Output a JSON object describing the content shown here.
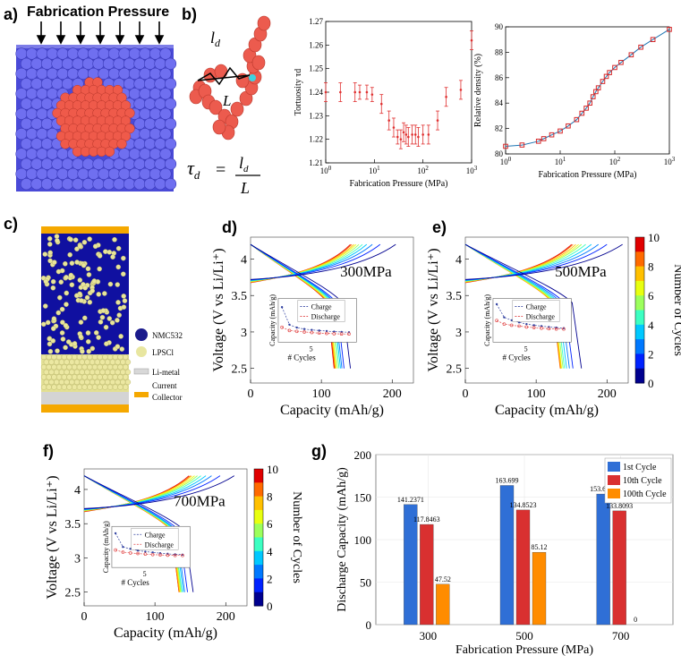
{
  "panels": {
    "a": "a)",
    "b": "b)",
    "c": "c)",
    "d": "d)",
    "e": "e)",
    "f": "f)",
    "g": "g)"
  },
  "panel_a": {
    "title": "Fabrication Pressure"
  },
  "panel_b_diagram": {
    "ld": "l",
    "ld_sub": "d",
    "L": "L",
    "tau": "τ",
    "tau_sub": "d",
    "eq": "="
  },
  "panel_c": {
    "legend": [
      {
        "label": "NMC532",
        "color": "#1a1a8c"
      },
      {
        "label": "LPSCl",
        "color": "#e8e6a0"
      },
      {
        "label": "Li-metal",
        "color": "#d8d8d8"
      },
      {
        "label": "Current Collector",
        "color": "#f5a800"
      }
    ]
  },
  "colorbar": {
    "label": "Number of Cycles",
    "ticks": [
      "0",
      "2",
      "4",
      "6",
      "8",
      "10"
    ]
  },
  "chart_data": [
    {
      "id": "b_tortuosity",
      "type": "scatter",
      "xlabel": "Fabrication Pressure (MPa)",
      "ylabel": "Tortuosity τd",
      "xscale": "log",
      "xlim": [
        1,
        1000
      ],
      "ylim": [
        1.21,
        1.27
      ],
      "xticks": [
        "10^0",
        "10^1",
        "10^2",
        "10^3"
      ],
      "yticks": [
        "1.21",
        "1.22",
        "1.23",
        "1.24",
        "1.25",
        "1.26",
        "1.27"
      ],
      "x": [
        1,
        2,
        4,
        5,
        7,
        9,
        14,
        20,
        25,
        30,
        35,
        40,
        45,
        50,
        60,
        70,
        80,
        100,
        130,
        200,
        300,
        600,
        1000
      ],
      "y": [
        1.24,
        1.24,
        1.24,
        1.24,
        1.24,
        1.239,
        1.235,
        1.228,
        1.225,
        1.221,
        1.22,
        1.223,
        1.222,
        1.221,
        1.222,
        1.222,
        1.221,
        1.222,
        1.222,
        1.228,
        1.238,
        1.241,
        1.262
      ],
      "err": [
        0.004,
        0.004,
        0.004,
        0.003,
        0.003,
        0.003,
        0.004,
        0.004,
        0.004,
        0.003,
        0.004,
        0.004,
        0.004,
        0.004,
        0.004,
        0.004,
        0.004,
        0.004,
        0.004,
        0.004,
        0.004,
        0.004,
        0.004
      ],
      "color": "#e03030"
    },
    {
      "id": "b_density",
      "type": "line",
      "xlabel": "Fabrication Pressure (MPa)",
      "ylabel": "Relative density (%)",
      "xscale": "log",
      "xlim": [
        1,
        1000
      ],
      "ylim": [
        80,
        90
      ],
      "xticks": [
        "10^0",
        "10^1",
        "10^2",
        "10^3"
      ],
      "yticks": [
        "80",
        "82",
        "84",
        "86",
        "88",
        "90"
      ],
      "x": [
        1,
        2,
        4,
        5,
        7,
        10,
        14,
        20,
        25,
        30,
        35,
        40,
        45,
        50,
        60,
        70,
        80,
        100,
        130,
        200,
        300,
        500,
        1000
      ],
      "y": [
        80.6,
        80.7,
        81.0,
        81.2,
        81.5,
        81.8,
        82.2,
        82.7,
        83.2,
        83.6,
        84.0,
        84.5,
        84.9,
        85.2,
        85.7,
        86.1,
        86.4,
        86.8,
        87.2,
        87.8,
        88.4,
        89.0,
        89.8
      ],
      "line_color": "#1f77b4",
      "marker_color": "#d62728"
    },
    {
      "id": "d",
      "type": "line",
      "label": "300MPa",
      "xlabel": "Capacity (mAh/g)",
      "ylabel": "Voltage (V vs Li/Li⁺)",
      "xlim": [
        0,
        230
      ],
      "ylim": [
        2.3,
        4.3
      ],
      "xticks": [
        "0",
        "100",
        "200"
      ],
      "yticks": [
        "2.5",
        "3",
        "3.5",
        "4"
      ],
      "inset": {
        "xlabel": "# Cycles",
        "ylabel": "Capacity (mAh/g)",
        "legend": [
          "Charge",
          "Discharge"
        ],
        "xticks": [
          "5"
        ],
        "charge": [
          210,
          150,
          140,
          135,
          132,
          130,
          128,
          126,
          125,
          124
        ],
        "discharge": [
          141,
          130,
          127,
          125,
          123,
          121,
          120,
          119,
          118,
          118
        ]
      },
      "charge_end": [
        205,
        183,
        172,
        164,
        158,
        153,
        149,
        146,
        143,
        141
      ],
      "discharge_end": [
        141,
        132,
        129,
        127,
        125,
        123,
        121,
        120,
        119,
        118
      ]
    },
    {
      "id": "e",
      "type": "line",
      "label": "500MPa",
      "xlabel": "Capacity (mAh/g)",
      "ylabel": "Voltage (V vs Li/Li⁺)",
      "xlim": [
        0,
        230
      ],
      "ylim": [
        2.3,
        4.3
      ],
      "xticks": [
        "0",
        "100",
        "200"
      ],
      "yticks": [
        "2.5",
        "3",
        "3.5",
        "4"
      ],
      "inset": {
        "xlabel": "# Cycles",
        "ylabel": "Capacity (mAh/g)",
        "legend": [
          "Charge",
          "Discharge"
        ],
        "xticks": [
          "5"
        ],
        "charge": [
          220,
          175,
          165,
          158,
          152,
          148,
          145,
          142,
          140,
          138
        ],
        "discharge": [
          164,
          152,
          148,
          145,
          142,
          140,
          138,
          136,
          135,
          135
        ]
      },
      "charge_end": [
        222,
        200,
        188,
        178,
        170,
        164,
        160,
        156,
        152,
        150
      ],
      "discharge_end": [
        164,
        152,
        147,
        143,
        140,
        138,
        136,
        135,
        134,
        135
      ]
    },
    {
      "id": "f",
      "type": "line",
      "label": "700MPa",
      "xlabel": "Capacity (mAh/g)",
      "ylabel": "Voltage (V vs Li/Li⁺)",
      "xlim": [
        0,
        230
      ],
      "ylim": [
        2.3,
        4.3
      ],
      "xticks": [
        "0",
        "100",
        "200"
      ],
      "yticks": [
        "2.5",
        "3",
        "3.5",
        "4"
      ],
      "inset": {
        "xlabel": "# Cycles",
        "ylabel": "Capacity (mAh/g)",
        "legend": [
          "Charge",
          "Discharge"
        ],
        "xticks": [
          "5"
        ],
        "charge": [
          215,
          165,
          158,
          152,
          148,
          145,
          142,
          140,
          138,
          137
        ],
        "discharge": [
          154,
          146,
          143,
          141,
          139,
          137,
          136,
          135,
          134,
          134
        ]
      },
      "charge_end": [
        212,
        192,
        180,
        172,
        165,
        160,
        156,
        152,
        150,
        148
      ],
      "discharge_end": [
        154,
        146,
        142,
        140,
        138,
        137,
        136,
        135,
        134,
        134
      ]
    },
    {
      "id": "g",
      "type": "bar",
      "categories": [
        "300",
        "500",
        "700"
      ],
      "xlabel": "Fabrication Pressure (MPa)",
      "ylabel": "Discharge Capacity (mAh/g)",
      "ylim": [
        0,
        200
      ],
      "yticks": [
        "0",
        "50",
        "100",
        "150",
        "200"
      ],
      "series": [
        {
          "name": "1st Cycle",
          "values": [
            141.2371,
            163.699,
            153.6281
          ],
          "labels": [
            "141.2371",
            "163.699",
            "153.6281"
          ],
          "color": "#2f6fd6"
        },
        {
          "name": "10th Cycle",
          "values": [
            117.8463,
            134.8523,
            133.8093
          ],
          "labels": [
            "117.8463",
            "134.8523",
            "133.8093"
          ],
          "color": "#d93030"
        },
        {
          "name": "100th Cycle",
          "values": [
            47.52,
            85.12,
            0
          ],
          "labels": [
            "47.52",
            "85.12",
            "0"
          ],
          "color": "#ff8c00"
        }
      ],
      "legend": "top-right"
    }
  ]
}
